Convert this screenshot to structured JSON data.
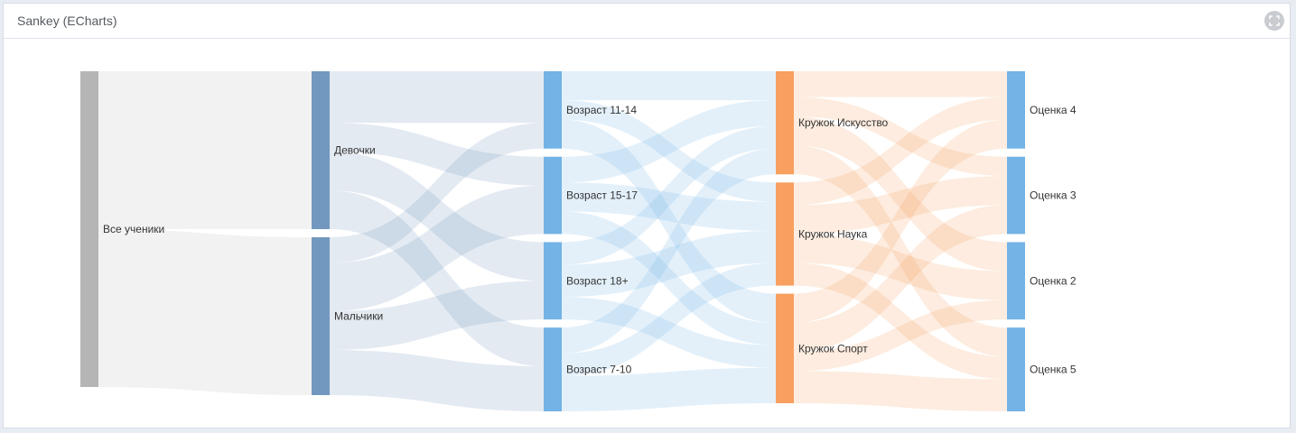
{
  "panel": {
    "title": "Sankey (ECharts)",
    "fullscreen_icon": "expand-icon"
  },
  "colors": {
    "root": "#b5b5b5",
    "gender": "#7398bf",
    "age": "#73b3e6",
    "club": "#f7a05f",
    "grade": "#73b3e6"
  },
  "chart_data": {
    "type": "sankey",
    "levels": [
      [
        "Все ученики"
      ],
      [
        "Девочки",
        "Мальчики"
      ],
      [
        "Возраст 11-14",
        "Возраст 15-17",
        "Возраст 18+",
        "Возраст 7-10"
      ],
      [
        "Кружок Искусство",
        "Кружок Наука",
        "Кружок Спорт"
      ],
      [
        "Оценка 4",
        "Оценка 3",
        "Оценка 2",
        "Оценка 5"
      ]
    ],
    "links": [
      {
        "source": "Все ученики",
        "target": "Девочки",
        "value": 49
      },
      {
        "source": "Все ученики",
        "target": "Мальчики",
        "value": 49
      },
      {
        "source": "Девочки",
        "target": "Возраст 11-14",
        "value": 16
      },
      {
        "source": "Девочки",
        "target": "Возраст 15-17",
        "value": 9
      },
      {
        "source": "Девочки",
        "target": "Возраст 18+",
        "value": 12
      },
      {
        "source": "Девочки",
        "target": "Возраст 7-10",
        "value": 12
      },
      {
        "source": "Мальчики",
        "target": "Возраст 11-14",
        "value": 8
      },
      {
        "source": "Мальчики",
        "target": "Возраст 15-17",
        "value": 15
      },
      {
        "source": "Мальчики",
        "target": "Возраст 18+",
        "value": 12
      },
      {
        "source": "Мальчики",
        "target": "Возраст 7-10",
        "value": 14
      },
      {
        "source": "Возраст 11-14",
        "target": "Кружок Искусство",
        "value": 9
      },
      {
        "source": "Возраст 11-14",
        "target": "Кружок Наука",
        "value": 6
      },
      {
        "source": "Возраст 11-14",
        "target": "Кружок Спорт",
        "value": 9
      },
      {
        "source": "Возраст 15-17",
        "target": "Кружок Искусство",
        "value": 8
      },
      {
        "source": "Возраст 15-17",
        "target": "Кружок Наука",
        "value": 9
      },
      {
        "source": "Возраст 15-17",
        "target": "Кружок Спорт",
        "value": 7
      },
      {
        "source": "Возраст 18+",
        "target": "Кружок Искусство",
        "value": 7
      },
      {
        "source": "Возраст 18+",
        "target": "Кружок Наука",
        "value": 10
      },
      {
        "source": "Возраст 18+",
        "target": "Кружок Спорт",
        "value": 7
      },
      {
        "source": "Возраст 7-10",
        "target": "Кружок Искусство",
        "value": 8
      },
      {
        "source": "Возраст 7-10",
        "target": "Кружок Наука",
        "value": 7
      },
      {
        "source": "Возраст 7-10",
        "target": "Кружок Спорт",
        "value": 11
      },
      {
        "source": "Кружок Искусство",
        "target": "Оценка 4",
        "value": 8
      },
      {
        "source": "Кружок Искусство",
        "target": "Оценка 3",
        "value": 6
      },
      {
        "source": "Кружок Искусство",
        "target": "Оценка 2",
        "value": 9
      },
      {
        "source": "Кружок Искусство",
        "target": "Оценка 5",
        "value": 9
      },
      {
        "source": "Кружок Наука",
        "target": "Оценка 4",
        "value": 7
      },
      {
        "source": "Кружок Наука",
        "target": "Оценка 3",
        "value": 9
      },
      {
        "source": "Кружок Наука",
        "target": "Оценка 2",
        "value": 9
      },
      {
        "source": "Кружок Наука",
        "target": "Оценка 5",
        "value": 7
      },
      {
        "source": "Кружок Спорт",
        "target": "Оценка 4",
        "value": 9
      },
      {
        "source": "Кружок Спорт",
        "target": "Оценка 3",
        "value": 9
      },
      {
        "source": "Кружок Спорт",
        "target": "Оценка 2",
        "value": 6
      },
      {
        "source": "Кружок Спорт",
        "target": "Оценка 5",
        "value": 10
      }
    ]
  }
}
